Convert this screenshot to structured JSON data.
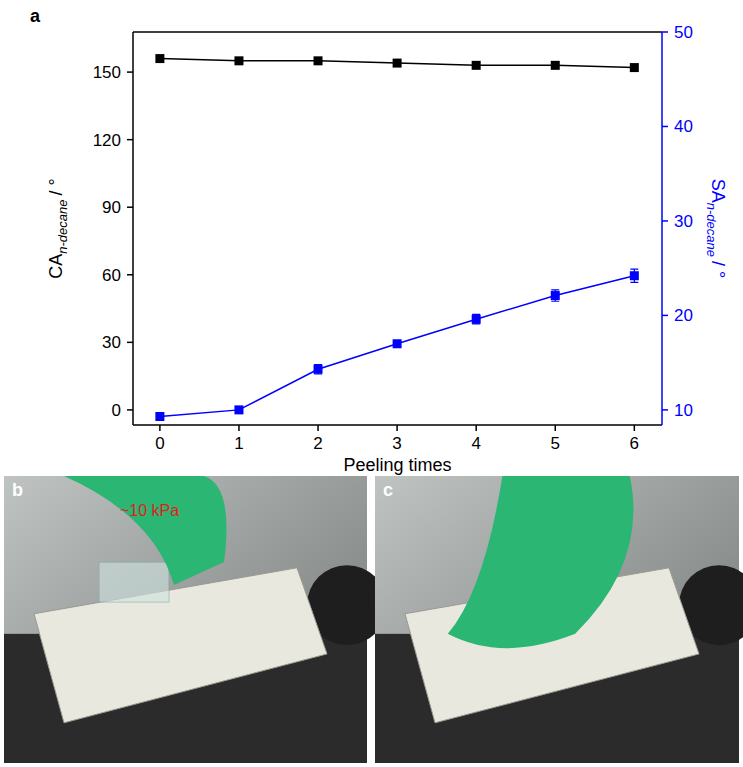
{
  "chart_data": {
    "type": "line",
    "panel_label": "a",
    "xlabel": "Peeling times",
    "ylabel": "CA",
    "ylabel_sub": "n-decane",
    "ylabel_unit": "/ °",
    "y2label": "SA",
    "y2label_sub": "n-decane",
    "y2label_unit": "/ °",
    "x": [
      0,
      1,
      2,
      3,
      4,
      5,
      6
    ],
    "xlim": [
      -0.34,
      6.35
    ],
    "xticks": [
      0,
      1,
      2,
      3,
      4,
      5,
      6
    ],
    "ylim": [
      -6.7,
      167.8
    ],
    "yticks": [
      0,
      30,
      60,
      90,
      120,
      150
    ],
    "y2lim": [
      8.4,
      50
    ],
    "y2ticks": [
      10,
      20,
      30,
      40,
      50
    ],
    "grid": false,
    "series": [
      {
        "color": "#000000",
        "marker": "square",
        "line_style": "solid",
        "values": [
          156,
          155,
          155,
          154,
          153,
          153,
          152
        ]
      },
      {
        "color": "#0000ff",
        "marker": "square",
        "line_style": "solid",
        "axis": "y2",
        "values": [
          9.3,
          10.0,
          14.3,
          17.0,
          19.6,
          22.1,
          24.2
        ],
        "errors": [
          0.3,
          0.3,
          0.5,
          0.3,
          0.5,
          0.6,
          0.7
        ]
      }
    ]
  },
  "panels": {
    "b": {
      "label": "b",
      "annotation": "~10 kPa"
    },
    "c": {
      "label": "c"
    }
  }
}
